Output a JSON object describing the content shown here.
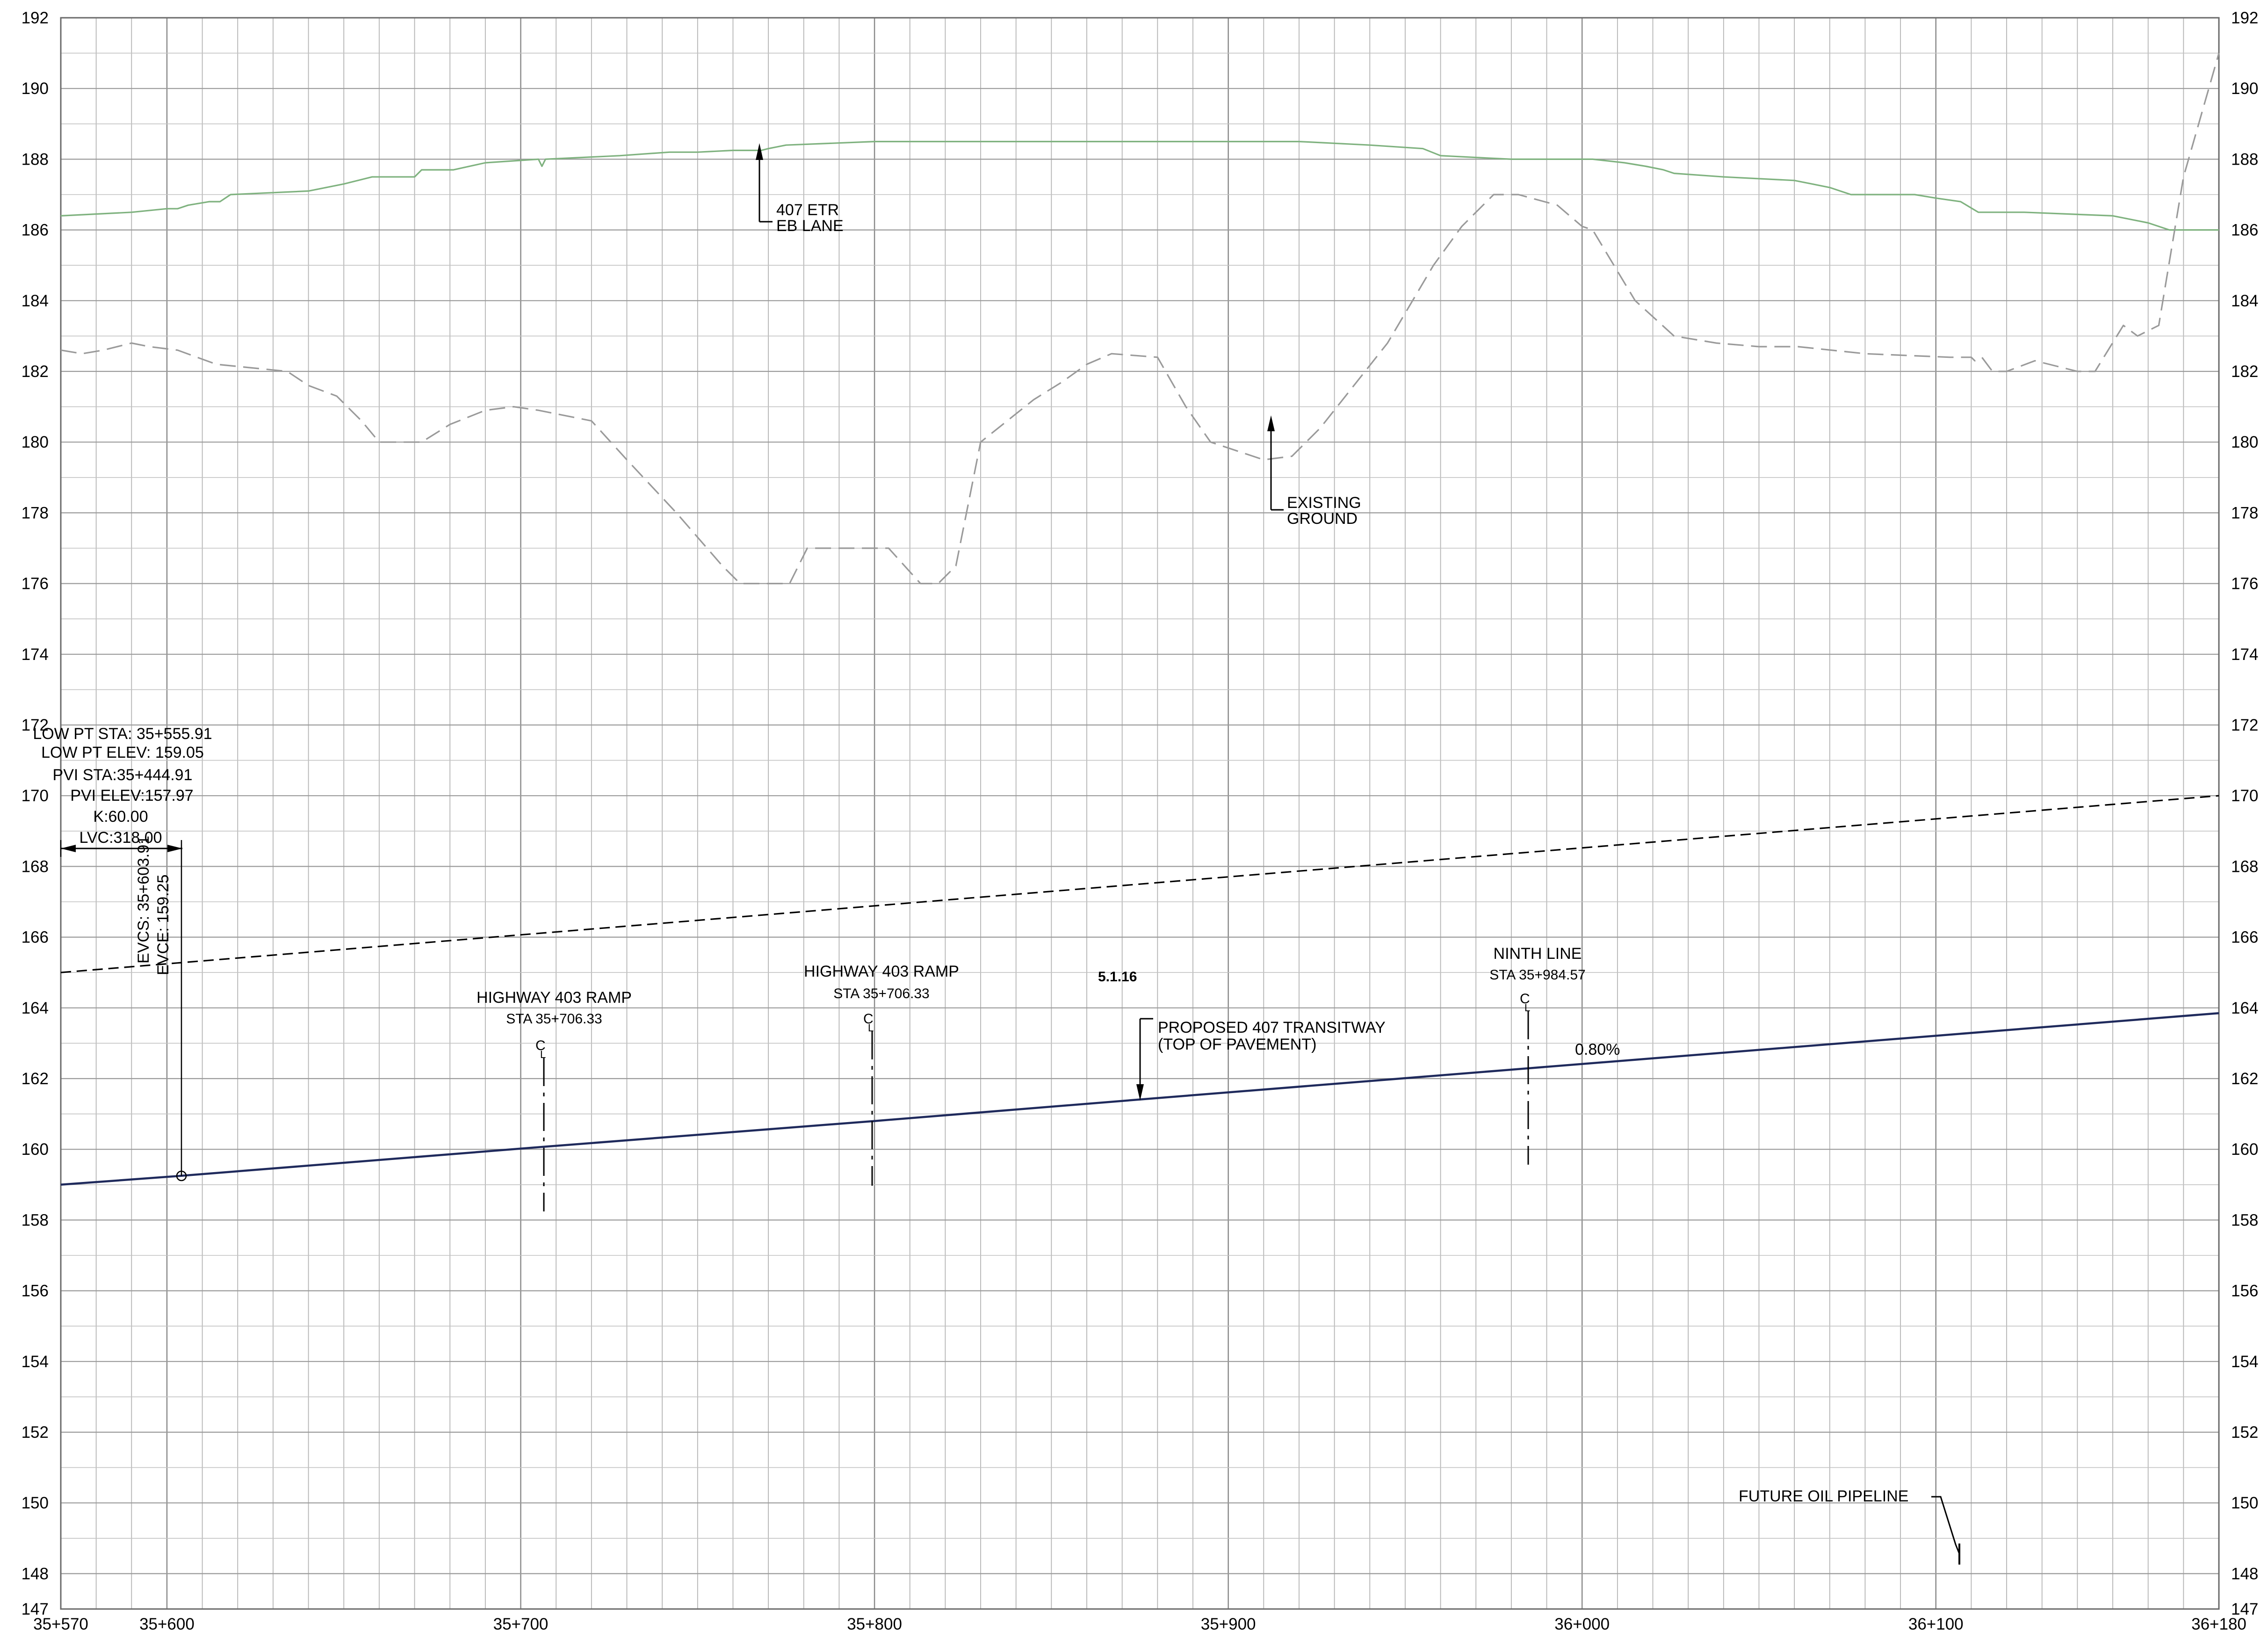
{
  "chart_data": {
    "type": "line",
    "x_range": [
      35570,
      36180
    ],
    "y_range": [
      147,
      192
    ],
    "x_ticks": [
      {
        "v": 35570,
        "label": "35+570"
      },
      {
        "v": 35600,
        "label": "35+600"
      },
      {
        "v": 35700,
        "label": "35+700"
      },
      {
        "v": 35800,
        "label": "35+800"
      },
      {
        "v": 35900,
        "label": "35+900"
      },
      {
        "v": 36000,
        "label": "36+000"
      },
      {
        "v": 36100,
        "label": "36+100"
      },
      {
        "v": 36180,
        "label": "36+180"
      }
    ],
    "y_ticks": [
      147,
      148,
      150,
      152,
      154,
      156,
      158,
      160,
      162,
      164,
      166,
      168,
      170,
      172,
      174,
      176,
      178,
      180,
      182,
      184,
      186,
      188,
      190,
      192
    ],
    "series": [
      {
        "key": "etr",
        "color": "#7fb27f",
        "style": "solid",
        "points": [
          [
            35570,
            186.4
          ],
          [
            35590,
            186.5
          ],
          [
            35600,
            186.6
          ],
          [
            35603,
            186.6
          ],
          [
            35606,
            186.7
          ],
          [
            35612,
            186.8
          ],
          [
            35615,
            186.8
          ],
          [
            35618,
            187.0
          ],
          [
            35640,
            187.1
          ],
          [
            35650,
            187.3
          ],
          [
            35658,
            187.5
          ],
          [
            35670,
            187.5
          ],
          [
            35672,
            187.7
          ],
          [
            35681,
            187.7
          ],
          [
            35690,
            187.9
          ],
          [
            35705,
            188.0
          ],
          [
            35706,
            187.8
          ],
          [
            35707,
            188.0
          ],
          [
            35728,
            188.1
          ],
          [
            35742,
            188.2
          ],
          [
            35750,
            188.2
          ],
          [
            35760,
            188.25
          ],
          [
            35768,
            188.25
          ],
          [
            35770,
            188.3
          ],
          [
            35775,
            188.4
          ],
          [
            35800,
            188.5
          ],
          [
            35920,
            188.5
          ],
          [
            35940,
            188.4
          ],
          [
            35955,
            188.3
          ],
          [
            35960,
            188.1
          ],
          [
            35980,
            188.0
          ],
          [
            36003,
            188.0
          ],
          [
            36012,
            187.9
          ],
          [
            36018,
            187.8
          ],
          [
            36023,
            187.7
          ],
          [
            36026,
            187.6
          ],
          [
            36040,
            187.5
          ],
          [
            36060,
            187.4
          ],
          [
            36065,
            187.3
          ],
          [
            36070,
            187.2
          ],
          [
            36076,
            187.0
          ],
          [
            36094,
            187.0
          ],
          [
            36100,
            186.9
          ],
          [
            36107,
            186.8
          ],
          [
            36112,
            186.5
          ],
          [
            36125,
            186.5
          ],
          [
            36150,
            186.4
          ],
          [
            36160,
            186.2
          ],
          [
            36166,
            186.0
          ],
          [
            36180,
            186.0
          ]
        ]
      },
      {
        "key": "ground",
        "color": "#9a9a9a",
        "style": "dashed",
        "points": [
          [
            35570,
            182.6
          ],
          [
            35576,
            182.5
          ],
          [
            35582,
            182.6
          ],
          [
            35590,
            182.8
          ],
          [
            35595,
            182.7
          ],
          [
            35603,
            182.6
          ],
          [
            35614,
            182.2
          ],
          [
            35634,
            182.0
          ],
          [
            35640,
            181.6
          ],
          [
            35648,
            181.3
          ],
          [
            35655,
            180.6
          ],
          [
            35660,
            180.0
          ],
          [
            35672,
            180.0
          ],
          [
            35680,
            180.5
          ],
          [
            35690,
            180.9
          ],
          [
            35698,
            181.0
          ],
          [
            35705,
            180.9
          ],
          [
            35720,
            180.6
          ],
          [
            35730,
            179.5
          ],
          [
            35744,
            178.0
          ],
          [
            35757,
            176.5
          ],
          [
            35762,
            176.0
          ],
          [
            35776,
            176.0
          ],
          [
            35781,
            177.0
          ],
          [
            35804,
            177.0
          ],
          [
            35813,
            176.0
          ],
          [
            35818,
            176.0
          ],
          [
            35823,
            176.5
          ],
          [
            35830,
            180.0
          ],
          [
            35845,
            181.2
          ],
          [
            35853,
            181.7
          ],
          [
            35860,
            182.2
          ],
          [
            35867,
            182.5
          ],
          [
            35880,
            182.4
          ],
          [
            35888,
            181.0
          ],
          [
            35895,
            180.0
          ],
          [
            35910,
            179.5
          ],
          [
            35918,
            179.6
          ],
          [
            35926,
            180.4
          ],
          [
            35945,
            182.8
          ],
          [
            35958,
            185.0
          ],
          [
            35966,
            186.1
          ],
          [
            35975,
            187.0
          ],
          [
            35982,
            187.0
          ],
          [
            35993,
            186.7
          ],
          [
            36000,
            186.1
          ],
          [
            36003,
            186.0
          ],
          [
            36015,
            184.0
          ],
          [
            36026,
            183.0
          ],
          [
            36038,
            182.8
          ],
          [
            36050,
            182.7
          ],
          [
            36061,
            182.7
          ],
          [
            36080,
            182.5
          ],
          [
            36104,
            182.4
          ],
          [
            36110,
            182.4
          ],
          [
            36111,
            182.3
          ],
          [
            36113,
            182.4
          ],
          [
            36116,
            182.0
          ],
          [
            36120,
            182.0
          ],
          [
            36128,
            182.3
          ],
          [
            36140,
            182.0
          ],
          [
            36145,
            182.0
          ],
          [
            36153,
            183.3
          ],
          [
            36157,
            183.0
          ],
          [
            36163,
            183.3
          ],
          [
            36170,
            187.5
          ],
          [
            36180,
            191.0
          ]
        ]
      },
      {
        "key": "upper_grade",
        "color": "#000000",
        "style": "dashed",
        "points": [
          [
            35570,
            165.0
          ],
          [
            36180,
            170.0
          ]
        ]
      },
      {
        "key": "transitway",
        "color": "#1f2a5c",
        "style": "solid",
        "points": [
          [
            35570,
            159.0
          ],
          [
            35603.91,
            159.25
          ],
          [
            35706.33,
            160.07
          ],
          [
            35800,
            160.8
          ],
          [
            35880,
            161.45
          ],
          [
            35984.57,
            162.29
          ],
          [
            36180,
            163.85
          ]
        ]
      }
    ],
    "labels": {
      "etr_label_1": "407 ETR",
      "etr_label_2": "EB LANE",
      "ground_label_1": "EXISTING",
      "ground_label_2": "GROUND",
      "low_pt_sta": "LOW PT STA: 35+555.91",
      "low_pt_elev": "LOW PT ELEV: 159.05",
      "pvi_sta": "PVI STA:35+444.91",
      "pvi_elev": "PVI ELEV:157.97",
      "k_value": "K:60.00",
      "lvc": "LVC:318.00",
      "evcs": "EVCS: 35+603.91",
      "evce": "EVCE: 159.25",
      "ramp1_name": "HIGHWAY 403 RAMP",
      "ramp1_sta": "STA 35+706.33",
      "ramp2_name": "HIGHWAY 403 RAMP",
      "ramp2_sta": "STA 35+706.33",
      "ninth_name": "NINTH LINE",
      "ninth_sta": "STA 35+984.57",
      "centerline_mark": "C",
      "centerline_sub": "L",
      "proposed_1": "PROPOSED 407 TRANSITWAY",
      "proposed_2": "(TOP OF PAVEMENT)",
      "grade": "0.80%",
      "section_code": "5.1.16",
      "pipeline": "FUTURE OIL PIPELINE"
    },
    "grid": true
  }
}
